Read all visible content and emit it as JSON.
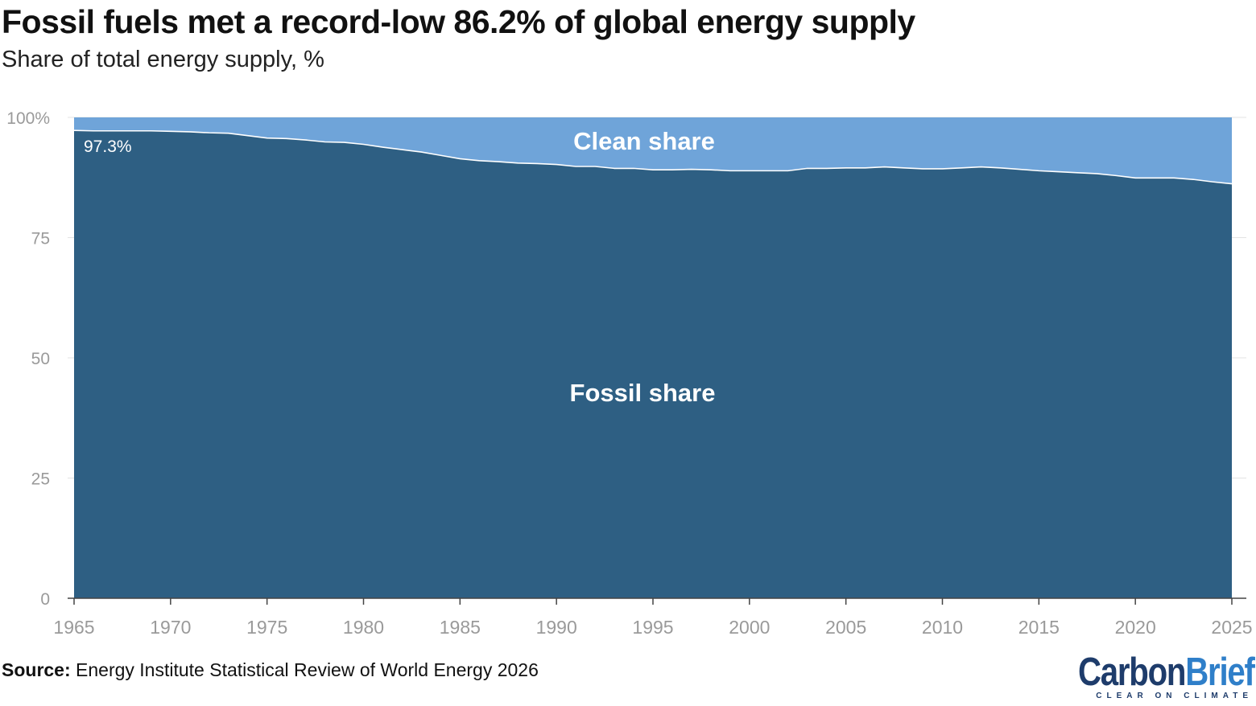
{
  "header": {
    "title": "Fossil fuels met a record-low 86.2% of global energy supply",
    "subtitle": "Share of total energy supply, %"
  },
  "footer": {
    "source_label": "Source:",
    "source_text": " Energy Institute Statistical Review of World Energy 2026"
  },
  "logo": {
    "carbon": "Carbon",
    "brief": "Brief",
    "tagline": "CLEAR ON CLIMATE"
  },
  "chart_data": {
    "type": "area",
    "x": [
      1965,
      1966,
      1967,
      1968,
      1969,
      1970,
      1971,
      1972,
      1973,
      1974,
      1975,
      1976,
      1977,
      1978,
      1979,
      1980,
      1981,
      1982,
      1983,
      1984,
      1985,
      1986,
      1987,
      1988,
      1989,
      1990,
      1991,
      1992,
      1993,
      1994,
      1995,
      1996,
      1997,
      1998,
      1999,
      2000,
      2001,
      2002,
      2003,
      2004,
      2005,
      2006,
      2007,
      2008,
      2009,
      2010,
      2011,
      2012,
      2013,
      2014,
      2015,
      2016,
      2017,
      2018,
      2019,
      2020,
      2021,
      2022,
      2023,
      2024,
      2025
    ],
    "series": [
      {
        "name": "Fossil share",
        "color": "#2e5f83",
        "values": [
          97.3,
          97.2,
          97.2,
          97.2,
          97.2,
          97.1,
          97.0,
          96.8,
          96.7,
          96.2,
          95.7,
          95.6,
          95.3,
          94.9,
          94.8,
          94.4,
          93.8,
          93.3,
          92.8,
          92.1,
          91.4,
          91.0,
          90.8,
          90.5,
          90.4,
          90.2,
          89.8,
          89.8,
          89.4,
          89.4,
          89.1,
          89.1,
          89.2,
          89.1,
          88.9,
          88.9,
          88.9,
          88.9,
          89.4,
          89.4,
          89.5,
          89.5,
          89.7,
          89.5,
          89.3,
          89.3,
          89.5,
          89.7,
          89.5,
          89.2,
          88.9,
          88.7,
          88.5,
          88.3,
          87.9,
          87.4,
          87.4,
          87.4,
          87.1,
          86.6,
          86.2
        ]
      },
      {
        "name": "Clean share",
        "color": "#6fa4d9",
        "values": [
          2.7,
          2.8,
          2.8,
          2.8,
          2.8,
          2.9,
          3.0,
          3.2,
          3.3,
          3.8,
          4.3,
          4.4,
          4.7,
          5.1,
          5.2,
          5.6,
          6.2,
          6.7,
          7.2,
          7.9,
          8.6,
          9.0,
          9.2,
          9.5,
          9.6,
          9.8,
          10.2,
          10.2,
          10.6,
          10.6,
          10.9,
          10.9,
          10.8,
          10.9,
          11.1,
          11.1,
          11.1,
          11.1,
          10.6,
          10.6,
          10.5,
          10.5,
          10.3,
          10.5,
          10.7,
          10.7,
          10.5,
          10.3,
          10.5,
          10.8,
          11.1,
          11.3,
          11.5,
          11.7,
          12.1,
          12.6,
          12.6,
          12.6,
          12.9,
          13.4,
          13.8
        ]
      }
    ],
    "annotation": "97.3%",
    "y_ticks": [
      0,
      25,
      50,
      75,
      100
    ],
    "y_tick_labels": [
      "0",
      "25",
      "50",
      "75",
      "100%"
    ],
    "x_ticks": [
      1965,
      1970,
      1975,
      1980,
      1985,
      1990,
      1995,
      2000,
      2005,
      2010,
      2015,
      2020,
      2025
    ],
    "xlim": [
      1965,
      2025
    ],
    "ylim": [
      0,
      100
    ],
    "grid": true,
    "stacked": true
  }
}
